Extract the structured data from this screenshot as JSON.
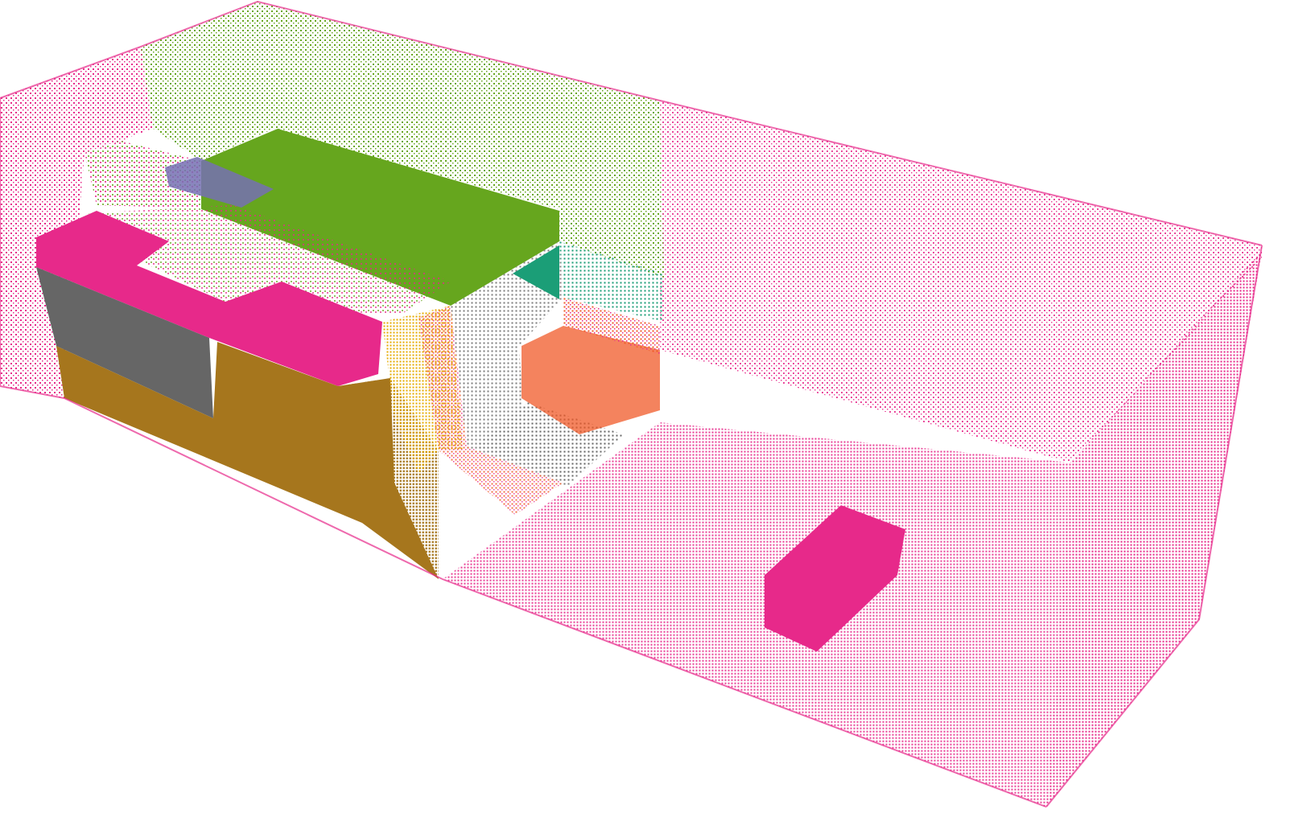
{
  "scene": {
    "background": "#ffffff",
    "segments": [
      {
        "name": "outer-room-shell",
        "color": "#e7298a",
        "render": "points"
      },
      {
        "name": "green-wall-segment",
        "color": "#66a61e",
        "render": "points"
      },
      {
        "name": "green-solid-block",
        "color": "#66a61e",
        "render": "solid"
      },
      {
        "name": "teal-segment",
        "color": "#1b9e77",
        "render": "mixed"
      },
      {
        "name": "slate-segment",
        "color": "#666666",
        "render": "points"
      },
      {
        "name": "orange-segment",
        "color": "#f05a28",
        "render": "mixed"
      },
      {
        "name": "mustard-segment",
        "color": "#e6ab02",
        "render": "points"
      },
      {
        "name": "brown-segment",
        "color": "#a6761d",
        "render": "mixed"
      },
      {
        "name": "gray-segment",
        "color": "#666666",
        "render": "solid"
      },
      {
        "name": "purple-segment",
        "color": "#7570b3",
        "render": "solid"
      },
      {
        "name": "pink-object",
        "color": "#e7298a",
        "render": "solid"
      }
    ]
  }
}
